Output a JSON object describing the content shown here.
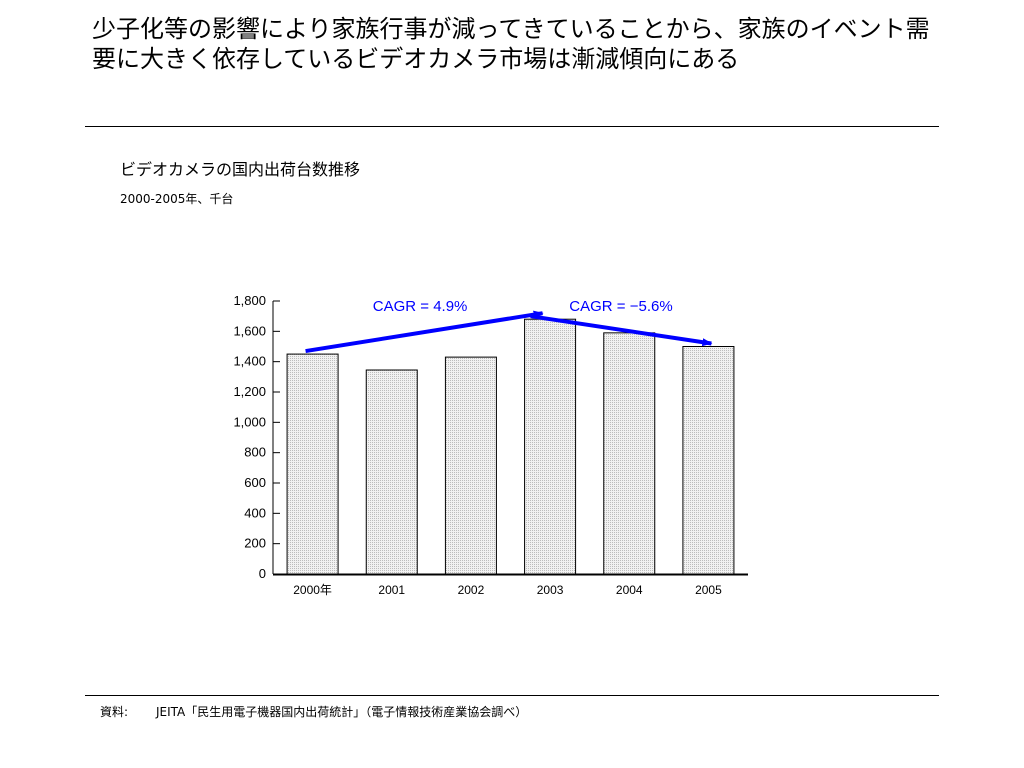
{
  "headline": "少子化等の影響により家族行事が減ってきていることから、家族のイベント需要に大きく依存しているビデオカメラ市場は漸減傾向にある",
  "chart_data": {
    "type": "bar",
    "title": "ビデオカメラの国内出荷台数推移",
    "subtitle": "2000-2005年、千台",
    "categories": [
      "2000年",
      "2001",
      "2002",
      "2003",
      "2004",
      "2005"
    ],
    "values": [
      1450,
      1345,
      1430,
      1680,
      1590,
      1500
    ],
    "ylim": [
      0,
      1800
    ],
    "yticks": [
      "0",
      "200",
      "400",
      "600",
      "800",
      "1,000",
      "1,200",
      "1,400",
      "1,600",
      "1,800"
    ],
    "xlabel": "",
    "ylabel": "",
    "grid": false,
    "bar_fill": "#e6e6e6",
    "annotations": [
      {
        "text": "CAGR = 4.9%",
        "from": "2000年",
        "to": "2003",
        "color": "#0000ff"
      },
      {
        "text": "CAGR = −5.6%",
        "from": "2003",
        "to": "2005",
        "color": "#0000ff"
      }
    ]
  },
  "source": {
    "label": "資料:",
    "text": "JEITA「民生用電子機器国内出荷統計」（電子情報技術産業協会調べ）"
  }
}
